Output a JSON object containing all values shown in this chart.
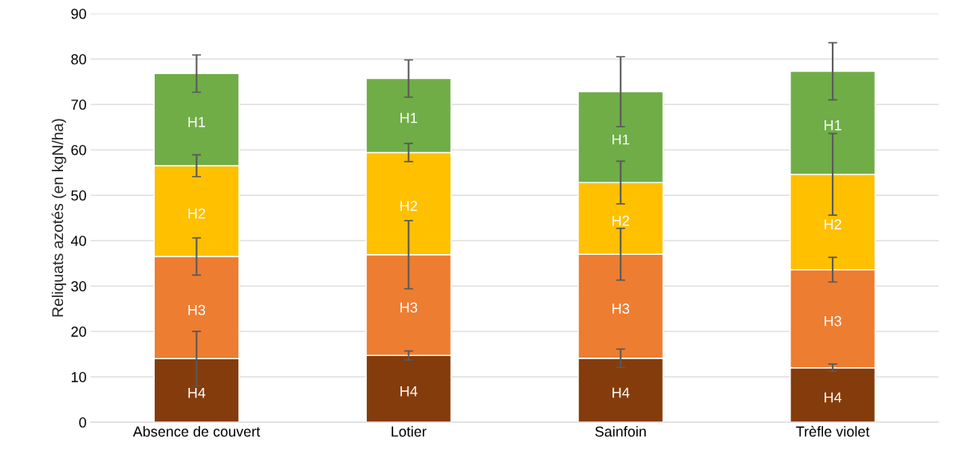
{
  "chart_data": {
    "type": "bar",
    "stacked": true,
    "ylabel": "Reliquats azotés (en kgN/ha)",
    "categories": [
      "Absence de couvert",
      "Lotier",
      "Sainfoin",
      "Trèfle violet"
    ],
    "series": [
      {
        "name": "H4",
        "color": "#843c0c",
        "values": [
          14.0,
          14.7,
          14.1,
          12.0
        ],
        "errors": [
          6.0,
          1.0,
          2.0,
          0.8
        ]
      },
      {
        "name": "H3",
        "color": "#ed7d31",
        "values": [
          22.5,
          22.2,
          22.9,
          21.6
        ],
        "errors": [
          4.1,
          7.5,
          5.7,
          2.7
        ]
      },
      {
        "name": "H2",
        "color": "#ffc000",
        "values": [
          20.0,
          22.5,
          15.8,
          21.0
        ],
        "errors": [
          2.4,
          2.0,
          4.7,
          9.0
        ]
      },
      {
        "name": "H1",
        "color": "#70ad47",
        "values": [
          20.3,
          16.3,
          20.0,
          22.7
        ],
        "errors": [
          4.1,
          4.1,
          7.7,
          6.3
        ]
      }
    ],
    "ylim": [
      0,
      90
    ],
    "yticks": [
      0,
      10,
      20,
      30,
      40,
      50,
      60,
      70,
      80,
      90
    ],
    "grid": "y",
    "legend": false
  }
}
